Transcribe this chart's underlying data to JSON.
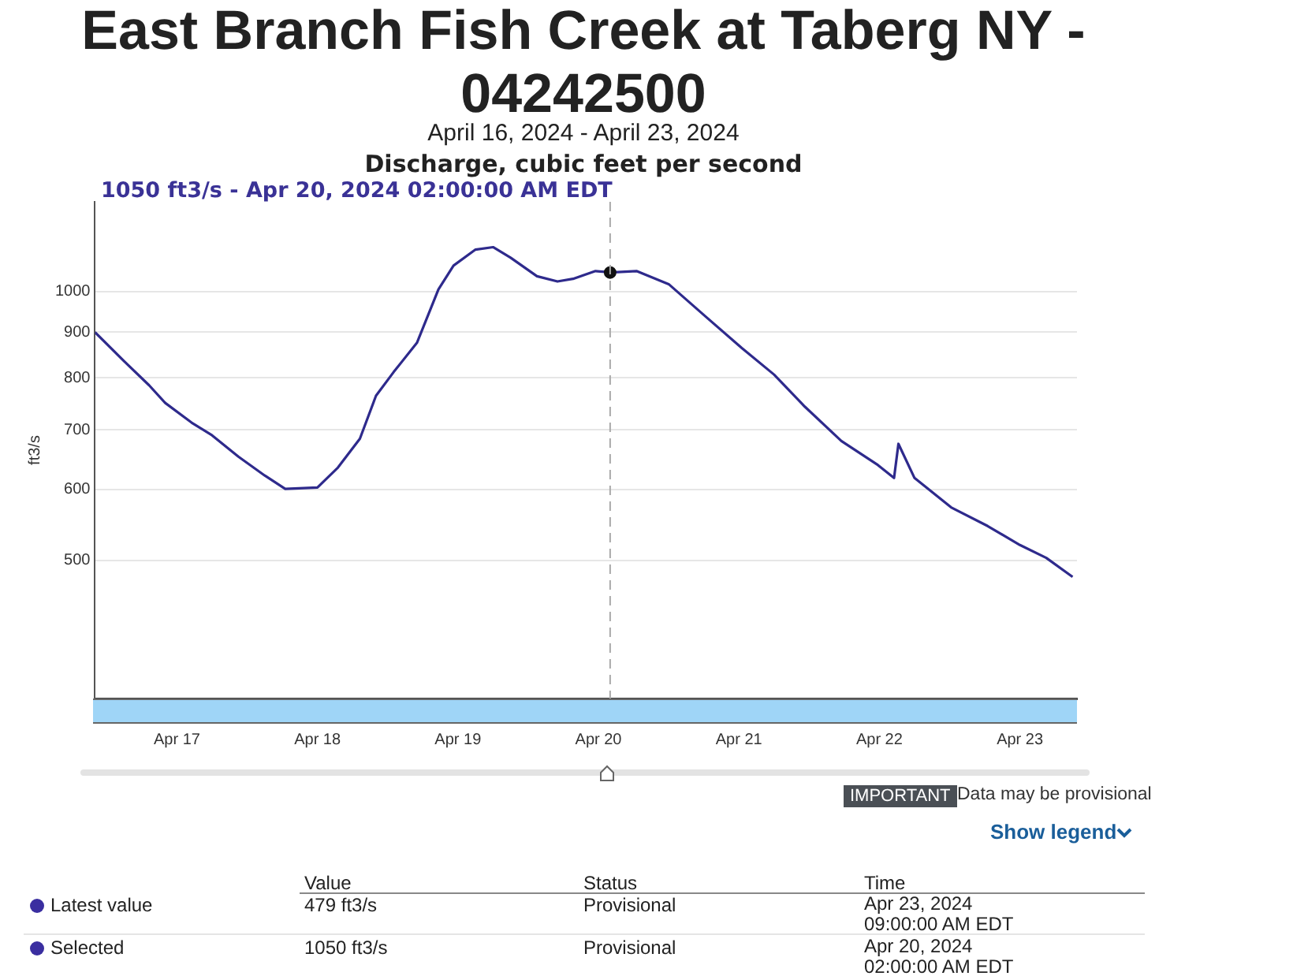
{
  "chart_data": {
    "type": "line",
    "title": "East Branch Fish Creek at Taberg NY - 04242500",
    "subtitle": "April 16, 2024 - April 23, 2024",
    "ylabel": "ft3/s",
    "x": [
      "2024-04-16T10:00",
      "2024-04-16T15:00",
      "2024-04-16T19:15",
      "2024-04-16T22:00",
      "2024-04-17T02:30",
      "2024-04-17T06:00",
      "2024-04-17T10:30",
      "2024-04-17T15:00",
      "2024-04-17T18:30",
      "2024-04-18T00:00",
      "2024-04-18T03:30",
      "2024-04-18T07:15",
      "2024-04-18T10:00",
      "2024-04-18T13:00",
      "2024-04-18T17:00",
      "2024-04-18T20:40",
      "2024-04-18T23:15",
      "2024-04-19T03:00",
      "2024-04-19T06:00",
      "2024-04-19T09:00",
      "2024-04-19T13:30",
      "2024-04-19T17:00",
      "2024-04-19T19:40",
      "2024-04-19T23:30",
      "2024-04-20T02:00",
      "2024-04-20T06:30",
      "2024-04-20T12:00",
      "2024-04-20T18:15",
      "2024-04-21T00:30",
      "2024-04-21T06:00",
      "2024-04-21T11:15",
      "2024-04-21T17:30",
      "2024-04-21T23:45",
      "2024-04-22T02:30",
      "2024-04-22T03:15",
      "2024-04-22T06:00",
      "2024-04-22T12:15",
      "2024-04-22T18:30",
      "2024-04-23T00:00",
      "2024-04-23T04:30",
      "2024-04-23T09:00"
    ],
    "series": [
      {
        "type": "scatter",
        "marker": "circle",
        "color": "#111111",
        "x": [
          "2024-04-20T02:00"
        ],
        "values": [
          1050
        ]
      },
      {
        "color": "#2e2a8c",
        "values": [
          900,
          835,
          785,
          750,
          713,
          690,
          653,
          622,
          601,
          603,
          635,
          684,
          764,
          812,
          876,
          1005,
          1069,
          1114,
          1121,
          1091,
          1040,
          1026,
          1033,
          1054,
          1050,
          1054,
          1019,
          938,
          864,
          807,
          743,
          680,
          639,
          618,
          675,
          618,
          573,
          546,
          520,
          503,
          479
        ]
      }
    ],
    "xlim": [
      "2024-04-16T10:00",
      "2024-04-23T09:45"
    ],
    "xticks": [
      {
        "value": "2024-04-17",
        "label": "Apr 17"
      },
      {
        "value": "2024-04-18",
        "label": "Apr 18"
      },
      {
        "value": "2024-04-19",
        "label": "Apr 19"
      },
      {
        "value": "2024-04-20",
        "label": "Apr 20"
      },
      {
        "value": "2024-04-21",
        "label": "Apr 21"
      },
      {
        "value": "2024-04-22",
        "label": "Apr 22"
      },
      {
        "value": "2024-04-23",
        "label": "Apr 23"
      }
    ],
    "ylim": [
      350,
      1260
    ],
    "yticks": [
      500,
      600,
      700,
      800,
      900,
      1000
    ],
    "log": true,
    "grid": "y",
    "legend": false,
    "marker": "none",
    "line_style": "solid",
    "ref_lines": [
      {
        "axis": "x",
        "value": "2024-04-20T02:00",
        "color": "#aaaaaa",
        "line_style": "dashed"
      }
    ],
    "annotations": [
      "1050 ft3/s - Apr 20, 2024 02:00:00 AM EDT",
      "Discharge, cubic feet per second",
      "IMPORTANT",
      "Data may be provisional",
      "Show legend",
      "Value",
      "Status",
      "Time",
      "Latest value",
      "479 ft3/s",
      "Provisional",
      "Apr 23, 2024 09:00:00 AM EDT",
      "Selected",
      "1050 ft3/s",
      "Provisional",
      "Apr 20, 2024 02:00:00 AM EDT"
    ]
  }
}
